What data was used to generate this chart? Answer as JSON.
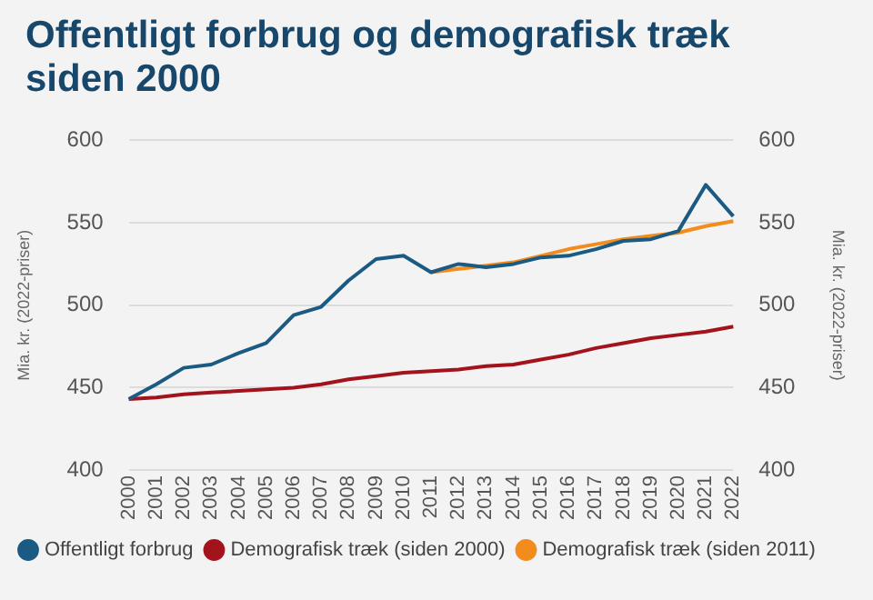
{
  "chart_data": {
    "type": "line",
    "title": "Offentligt forbrug og demografisk træk siden 2000",
    "categories": [
      "2000",
      "2001",
      "2002",
      "2003",
      "2004",
      "2005",
      "2006",
      "2007",
      "2008",
      "2009",
      "2010",
      "2011",
      "2012",
      "2013",
      "2014",
      "2015",
      "2016",
      "2017",
      "2018",
      "2019",
      "2020",
      "2021",
      "2022"
    ],
    "series": [
      {
        "name": "Offentligt forbrug",
        "color": "#1b5a82",
        "values": [
          443,
          452,
          462,
          464,
          471,
          477,
          494,
          499,
          515,
          528,
          530,
          520,
          525,
          523,
          525,
          529,
          530,
          534,
          539,
          540,
          545,
          573,
          554
        ]
      },
      {
        "name": "Demografisk træk (siden 2000)",
        "color": "#a3131c",
        "values": [
          443,
          444,
          446,
          447,
          448,
          449,
          450,
          452,
          455,
          457,
          459,
          460,
          461,
          463,
          464,
          467,
          470,
          474,
          477,
          480,
          482,
          484,
          487
        ]
      },
      {
        "name": "Demografisk træk (siden 2011)",
        "color": "#f28c1c",
        "values": [
          null,
          null,
          null,
          null,
          null,
          null,
          null,
          null,
          null,
          null,
          null,
          520,
          522,
          524,
          526,
          530,
          534,
          537,
          540,
          542,
          544,
          548,
          551
        ]
      }
    ],
    "ylabel": "Mia. kr. (2022-priser)",
    "y2label": "Mia. kr. (2022-priser)",
    "ylim": [
      400,
      600
    ],
    "yticks": [
      400,
      450,
      500,
      550,
      600
    ],
    "y2lim": [
      400,
      600
    ],
    "y2ticks": [
      400,
      450,
      500,
      550,
      600
    ],
    "grid": "y",
    "legend": "bottom",
    "marker": "none",
    "line_style": "solid"
  }
}
